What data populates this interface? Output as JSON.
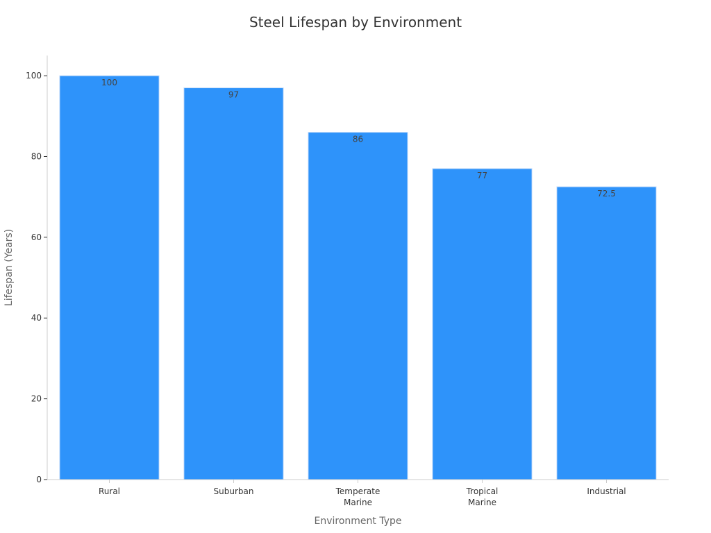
{
  "chart_data": {
    "type": "bar",
    "title": "Steel Lifespan by Environment",
    "xlabel": "Environment Type",
    "ylabel": "Lifespan (Years)",
    "categories": [
      "Rural",
      "Suburban",
      "Temperate\nMarine",
      "Tropical\nMarine",
      "Industrial"
    ],
    "values": [
      100,
      97,
      86,
      77,
      72.5
    ],
    "data_labels": [
      "100",
      "97",
      "86",
      "77",
      "72.5"
    ],
    "y_ticks": [
      0,
      20,
      40,
      60,
      80,
      100
    ],
    "ylim": [
      0,
      105
    ],
    "grid": false,
    "legend": "none",
    "colors": {
      "bar": "#2e93fa",
      "bar_edge": "#c9defa",
      "axis": "#cccccc"
    }
  }
}
